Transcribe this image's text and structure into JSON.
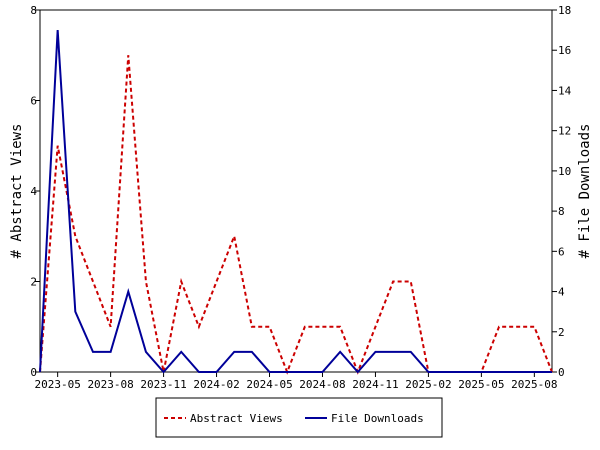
{
  "chart_data": {
    "type": "line",
    "x": [
      "2023-04",
      "2023-05",
      "2023-06",
      "2023-07",
      "2023-08",
      "2023-09",
      "2023-10",
      "2023-11",
      "2023-12",
      "2024-01",
      "2024-02",
      "2024-03",
      "2024-04",
      "2024-05",
      "2024-06",
      "2024-07",
      "2024-08",
      "2024-09",
      "2024-10",
      "2024-11",
      "2024-12",
      "2025-01",
      "2025-02",
      "2025-03",
      "2025-04",
      "2025-05",
      "2025-06",
      "2025-07",
      "2025-08",
      "2025-09"
    ],
    "x_tick_labels": [
      "2023-05",
      "2023-08",
      "2023-11",
      "2024-02",
      "2024-05",
      "2024-08",
      "2024-11",
      "2025-02",
      "2025-05",
      "2025-08"
    ],
    "series": [
      {
        "name": "Abstract Views",
        "axis": "left",
        "color": "#cc0000",
        "dash": "dashed",
        "values": [
          0,
          5,
          3,
          2,
          1,
          7,
          2,
          0,
          2,
          1,
          2,
          3,
          1,
          1,
          0,
          1,
          1,
          1,
          0,
          1,
          2,
          2,
          0,
          0,
          0,
          0,
          1,
          1,
          1,
          0
        ]
      },
      {
        "name": "File Downloads",
        "axis": "right",
        "color": "#000099",
        "dash": "solid",
        "values": [
          0,
          17,
          3,
          1,
          1,
          4,
          1,
          0,
          1,
          0,
          0,
          1,
          1,
          0,
          0,
          0,
          0,
          1,
          0,
          1,
          1,
          1,
          0,
          0,
          0,
          0,
          0,
          0,
          0,
          0
        ]
      }
    ],
    "ylabel_left": "# Abstract Views",
    "ylabel_right": "# File Downloads",
    "ylim_left": [
      0,
      8
    ],
    "ylim_right": [
      0,
      18
    ],
    "yticks_left": [
      0,
      2,
      4,
      6,
      8
    ],
    "yticks_right": [
      0,
      2,
      4,
      6,
      8,
      10,
      12,
      14,
      16,
      18
    ],
    "grid": false,
    "legend_position": "bottom"
  }
}
